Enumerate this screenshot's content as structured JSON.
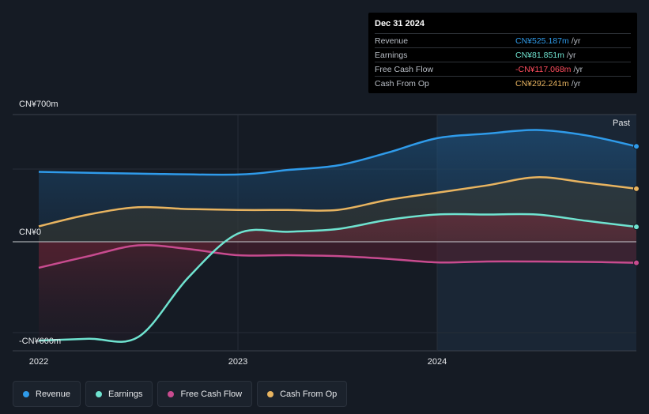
{
  "tooltip": {
    "date": "Dec 31 2024",
    "rows": [
      {
        "name": "Revenue",
        "value": "CN¥525.187m",
        "unit": "/yr",
        "color": "#2f9bea"
      },
      {
        "name": "Earnings",
        "value": "CN¥81.851m",
        "unit": "/yr",
        "color": "#6fe3d0"
      },
      {
        "name": "Free Cash Flow",
        "value": "-CN¥117.068m",
        "unit": "/yr",
        "color": "#ff4d5e"
      },
      {
        "name": "Cash From Op",
        "value": "CN¥292.241m",
        "unit": "/yr",
        "color": "#e8b460"
      }
    ]
  },
  "y_labels": {
    "top": "CN¥700m",
    "zero": "CN¥0",
    "bottom": "-CN¥600m"
  },
  "past_label": "Past",
  "legend": [
    {
      "label": "Revenue",
      "color": "#2f9bea"
    },
    {
      "label": "Earnings",
      "color": "#6fe3d0"
    },
    {
      "label": "Free Cash Flow",
      "color": "#c84b8f"
    },
    {
      "label": "Cash From Op",
      "color": "#e8b460"
    }
  ],
  "chart_data": {
    "type": "line",
    "x_ticks": [
      {
        "label": "2022",
        "x": 2022.0
      },
      {
        "label": "2023",
        "x": 2023.0
      },
      {
        "label": "2024",
        "x": 2024.0
      }
    ],
    "ylim": [
      -600,
      700
    ],
    "series": [
      {
        "name": "Revenue",
        "color": "#2f9bea",
        "x": [
          2022.0,
          2022.5,
          2023.0,
          2023.25,
          2023.5,
          2023.75,
          2024.0,
          2024.25,
          2024.5,
          2024.75,
          2025.0
        ],
        "y": [
          385,
          375,
          370,
          395,
          420,
          490,
          570,
          595,
          615,
          585,
          525
        ]
      },
      {
        "name": "Earnings",
        "color": "#6fe3d0",
        "x": [
          2022.0,
          2022.25,
          2022.5,
          2022.75,
          2023.0,
          2023.25,
          2023.5,
          2023.75,
          2024.0,
          2024.25,
          2024.5,
          2024.75,
          2025.0
        ],
        "y": [
          -550,
          -540,
          -530,
          -200,
          45,
          55,
          70,
          120,
          150,
          150,
          150,
          115,
          82
        ]
      },
      {
        "name": "Free Cash Flow",
        "color": "#c84b8f",
        "x": [
          2022.0,
          2022.25,
          2022.5,
          2022.75,
          2023.0,
          2023.25,
          2023.5,
          2023.75,
          2024.0,
          2024.25,
          2024.5,
          2024.75,
          2025.0
        ],
        "y": [
          -145,
          -80,
          -20,
          -40,
          -75,
          -75,
          -80,
          -95,
          -115,
          -110,
          -110,
          -112,
          -117
        ]
      },
      {
        "name": "Cash From Op",
        "color": "#e8b460",
        "x": [
          2022.0,
          2022.25,
          2022.5,
          2022.75,
          2023.0,
          2023.25,
          2023.5,
          2023.75,
          2024.0,
          2024.25,
          2024.5,
          2024.75,
          2025.0
        ],
        "y": [
          85,
          150,
          190,
          180,
          175,
          175,
          175,
          230,
          270,
          310,
          355,
          325,
          292
        ]
      }
    ]
  }
}
